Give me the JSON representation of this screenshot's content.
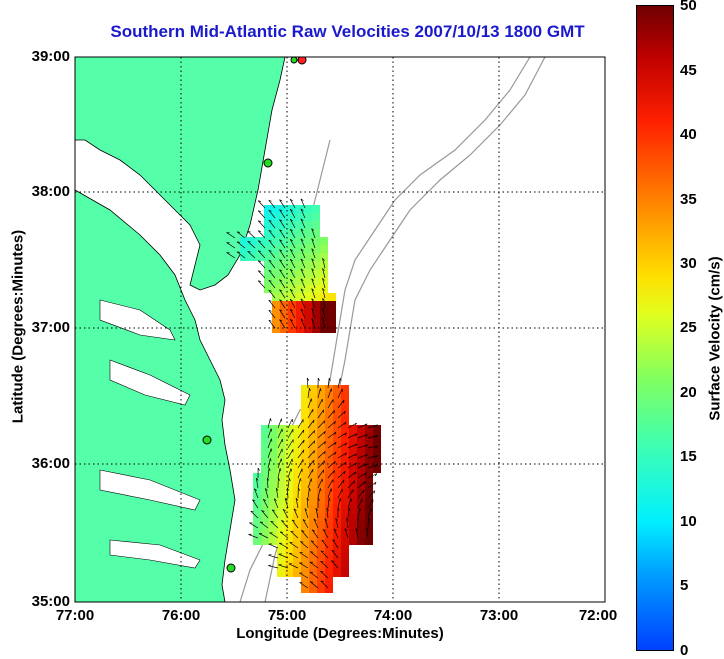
{
  "title": "Southern Mid-Atlantic Raw Velocities 2007/10/13 1800 GMT",
  "axes": {
    "x_title": "Longitude (Degrees:Minutes)",
    "y_title": "Latitude (Degrees:Minutes)",
    "x_ticks": [
      "77:00",
      "76:00",
      "75:00",
      "74:00",
      "73:00",
      "72:00"
    ],
    "y_ticks": [
      "39:00",
      "38:00",
      "37:00",
      "36:00",
      "35:00"
    ],
    "lon_range_w": [
      77,
      72
    ],
    "lat_range_n": [
      35,
      39
    ]
  },
  "colorbar": {
    "title": "Surface Velocity (cm/s)",
    "ticks": [
      "50",
      "45",
      "40",
      "35",
      "30",
      "25",
      "20",
      "15",
      "10",
      "5",
      "0"
    ],
    "range": [
      0,
      50
    ]
  },
  "colors": {
    "land": "#55ffaa",
    "contour": "#999999",
    "station": "#22dd22",
    "station_active": "#ff2020",
    "title": "#1a1acc"
  }
}
